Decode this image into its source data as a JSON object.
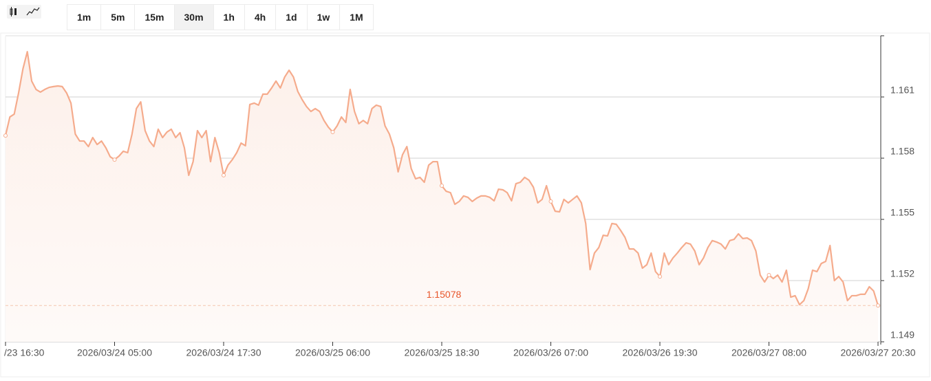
{
  "toolbar": {
    "intervals": [
      "1m",
      "5m",
      "15m",
      "30m",
      "1h",
      "4h",
      "1d",
      "1w",
      "1M"
    ],
    "selected": "30m"
  },
  "chart_data": {
    "type": "area",
    "categories": [
      "/23 16:30",
      null,
      null,
      null,
      null,
      null,
      null,
      null,
      null,
      null,
      null,
      null,
      null,
      null,
      null,
      null,
      null,
      null,
      null,
      null,
      null,
      null,
      null,
      null,
      null,
      "2026/03/24 05:00",
      null,
      null,
      null,
      null,
      null,
      null,
      null,
      null,
      null,
      null,
      null,
      null,
      null,
      null,
      null,
      null,
      null,
      null,
      null,
      null,
      null,
      null,
      null,
      null,
      "2026/03/24 17:30",
      null,
      null,
      null,
      null,
      null,
      null,
      null,
      null,
      null,
      null,
      null,
      null,
      null,
      null,
      null,
      null,
      null,
      null,
      null,
      null,
      null,
      null,
      null,
      null,
      "2026/03/25 06:00",
      null,
      null,
      null,
      null,
      null,
      null,
      null,
      null,
      null,
      null,
      null,
      null,
      null,
      null,
      null,
      null,
      null,
      null,
      null,
      null,
      null,
      null,
      null,
      null,
      "2026/03/25 18:30",
      null,
      null,
      null,
      null,
      null,
      null,
      null,
      null,
      null,
      null,
      null,
      null,
      null,
      null,
      null,
      null,
      null,
      null,
      null,
      null,
      null,
      null,
      null,
      null,
      "2026/03/26 07:00",
      null,
      null,
      null,
      null,
      null,
      null,
      null,
      null,
      null,
      null,
      null,
      null,
      null,
      null,
      null,
      null,
      null,
      null,
      null,
      null,
      null,
      null,
      null,
      null,
      "2026/03/26 19:30",
      null,
      null,
      null,
      null,
      null,
      null,
      null,
      null,
      null,
      null,
      null,
      null,
      null,
      null,
      null,
      null,
      null,
      null,
      null,
      null,
      null,
      null,
      null,
      null,
      "2026/03/27 08:00",
      null,
      null,
      null,
      null,
      null,
      null,
      null,
      null,
      null,
      null,
      null,
      null,
      null,
      null,
      null,
      null,
      null,
      null,
      null,
      null,
      null,
      null,
      null,
      null,
      "2026/03/27 20:30"
    ],
    "values": [
      1.15911,
      1.16002,
      1.16016,
      1.1612,
      1.16238,
      1.16322,
      1.16178,
      1.16137,
      1.16124,
      1.16137,
      1.16147,
      1.16151,
      1.16154,
      1.16151,
      1.1612,
      1.1607,
      1.15918,
      1.15884,
      1.15884,
      1.15857,
      1.15901,
      1.15867,
      1.15884,
      1.15851,
      1.15807,
      1.15793,
      1.1581,
      1.15834,
      1.15827,
      1.15918,
      1.16043,
      1.16076,
      1.15935,
      1.15884,
      1.15857,
      1.15942,
      1.15901,
      1.15928,
      1.15942,
      1.15901,
      1.15925,
      1.15851,
      1.15716,
      1.15783,
      1.15935,
      1.15901,
      1.15935,
      1.15783,
      1.15901,
      1.15827,
      1.15716,
      1.15766,
      1.15793,
      1.15827,
      1.15874,
      1.15861,
      1.16063,
      1.1607,
      1.1606,
      1.16114,
      1.16114,
      1.16144,
      1.16178,
      1.16144,
      1.16198,
      1.16231,
      1.16198,
      1.16127,
      1.16087,
      1.16053,
      1.16029,
      1.16043,
      1.16029,
      1.15985,
      1.15952,
      1.15928,
      1.15958,
      1.16002,
      1.15975,
      1.16137,
      1.16029,
      1.15969,
      1.15985,
      1.15969,
      1.16043,
      1.1606,
      1.16053,
      1.15958,
      1.15918,
      1.15851,
      1.15733,
      1.15817,
      1.15857,
      1.15749,
      1.15699,
      1.15706,
      1.15682,
      1.15766,
      1.15783,
      1.15783,
      1.15665,
      1.15638,
      1.15631,
      1.15574,
      1.15588,
      1.15615,
      1.15608,
      1.15588,
      1.15604,
      1.15615,
      1.15615,
      1.15608,
      1.15591,
      1.15648,
      1.15645,
      1.15631,
      1.15591,
      1.15675,
      1.15682,
      1.15706,
      1.15692,
      1.15658,
      1.15581,
      1.15598,
      1.15665,
      1.15588,
      1.1554,
      1.15537,
      1.15598,
      1.15581,
      1.15598,
      1.15615,
      1.15581,
      1.1548,
      1.15254,
      1.15335,
      1.15362,
      1.15422,
      1.15419,
      1.1548,
      1.15476,
      1.15446,
      1.15412,
      1.15355,
      1.15355,
      1.15335,
      1.15261,
      1.15278,
      1.15335,
      1.15244,
      1.1522,
      1.15335,
      1.15278,
      1.15311,
      1.15335,
      1.15362,
      1.15385,
      1.15379,
      1.15345,
      1.15278,
      1.15311,
      1.15362,
      1.15396,
      1.15389,
      1.15379,
      1.15355,
      1.15396,
      1.15402,
      1.15429,
      1.15406,
      1.15409,
      1.15396,
      1.15345,
      1.15227,
      1.15193,
      1.15227,
      1.1521,
      1.15227,
      1.15193,
      1.15251,
      1.15119,
      1.15126,
      1.15082,
      1.15102,
      1.1516,
      1.15251,
      1.15244,
      1.15284,
      1.15294,
      1.15372,
      1.152,
      1.1522,
      1.15193,
      1.15102,
      1.15126,
      1.15126,
      1.15133,
      1.15133,
      1.1517,
      1.15149,
      1.15078
    ],
    "color": "#f5ab8c",
    "ylim": [
      1.149,
      1.164
    ],
    "yticks": [
      1.149,
      1.152,
      1.155,
      1.158,
      1.161
    ],
    "grid": true,
    "price_line": 1.15078,
    "price_line_color": "#e8552a"
  }
}
